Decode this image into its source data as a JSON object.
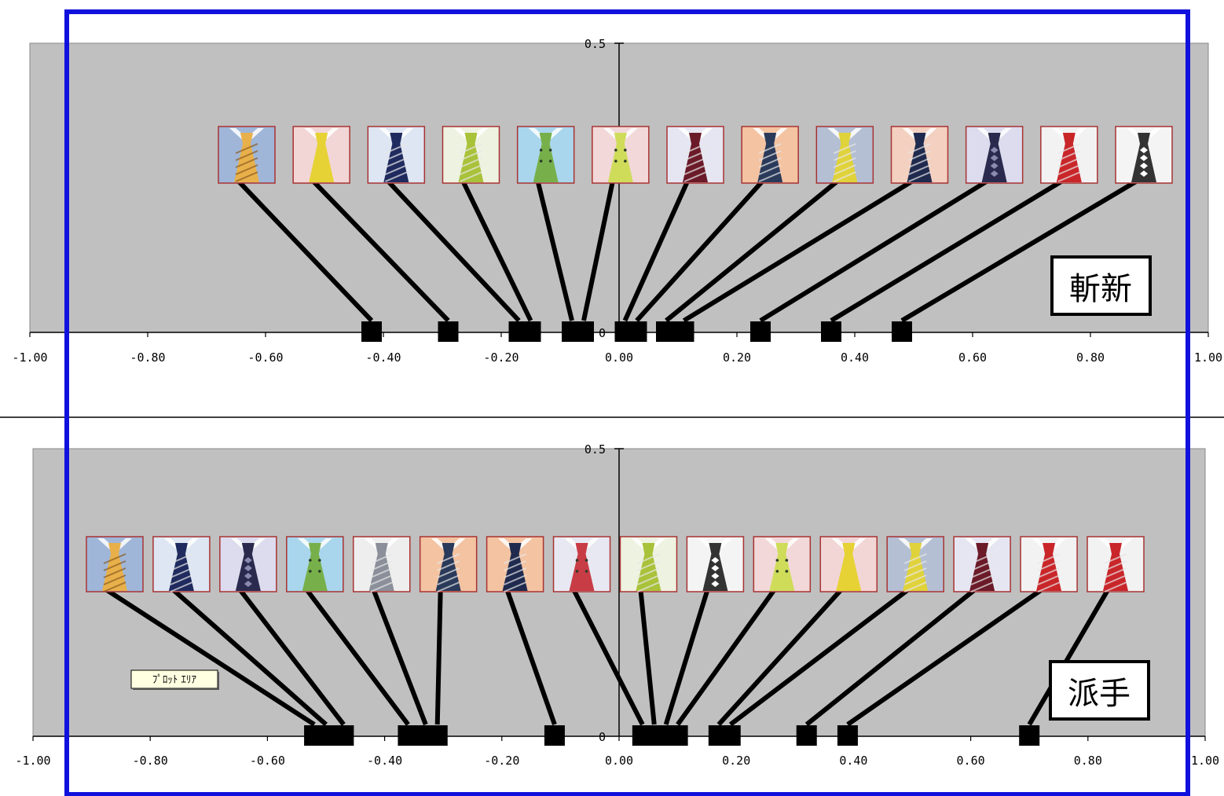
{
  "chart_data": [
    {
      "type": "scatter",
      "name": "top",
      "label": "斬新",
      "x_ticks": [
        "-1.00",
        "-0.80",
        "-0.60",
        "-0.40",
        "-0.20",
        "0.00",
        "0.20",
        "0.40",
        "0.60",
        "0.80",
        "1.00"
      ],
      "y_tick_top": "0.5",
      "y_tick_zero": "0",
      "xlim": [
        -1.0,
        1.0
      ],
      "ylim": [
        0,
        0.5
      ],
      "points": [
        {
          "x": -0.42,
          "color": "#9fb6d8",
          "tie": "#e8b04a",
          "pattern": "diagonal"
        },
        {
          "x": -0.29,
          "color": "#f2d6d6",
          "tie": "#e6d234",
          "pattern": "plain"
        },
        {
          "x": -0.17,
          "color": "#dde6f2",
          "tie": "#1f2a5e",
          "pattern": "stripe"
        },
        {
          "x": -0.15,
          "color": "#eef2e0",
          "tie": "#a8c23a",
          "pattern": "stripe"
        },
        {
          "x": -0.08,
          "color": "#a9d6ec",
          "tie": "#77b04a",
          "pattern": "dots"
        },
        {
          "x": -0.06,
          "color": "#f2d8d8",
          "tie": "#cfdc5a",
          "pattern": "dots"
        },
        {
          "x": 0.01,
          "color": "#e6e6f2",
          "tie": "#6a1a28",
          "pattern": "stripe"
        },
        {
          "x": 0.03,
          "color": "#f3c3a2",
          "tie": "#2a3a5a",
          "pattern": "stripe"
        },
        {
          "x": 0.08,
          "color": "#b4bfd3",
          "tie": "#e0d23a",
          "pattern": "stripe"
        },
        {
          "x": 0.11,
          "color": "#f3d0c0",
          "tie": "#1f2a4e",
          "pattern": "stripe"
        },
        {
          "x": 0.24,
          "color": "#dcdcee",
          "tie": "#2a2a4e",
          "pattern": "diamond"
        },
        {
          "x": 0.36,
          "color": "#f2f2f2",
          "tie": "#c9262a",
          "pattern": "stripe"
        },
        {
          "x": 0.48,
          "color": "#f4f4f4",
          "tie": "#333333",
          "pattern": "check"
        }
      ]
    },
    {
      "type": "scatter",
      "name": "bottom",
      "label": "派手",
      "x_ticks": [
        "-1.00",
        "-0.80",
        "-0.60",
        "-0.40",
        "-0.20",
        "0.00",
        "0.20",
        "0.40",
        "0.60",
        "0.80",
        "1.00"
      ],
      "y_tick_top": "0.5",
      "y_tick_zero": "0",
      "xlim": [
        -1.0,
        1.0
      ],
      "ylim": [
        0,
        0.5
      ],
      "points": [
        {
          "x": -0.52,
          "color": "#9fb6d8",
          "tie": "#e8b04a",
          "pattern": "diagonal"
        },
        {
          "x": -0.5,
          "color": "#dde6f2",
          "tie": "#1f2a5e",
          "pattern": "stripe"
        },
        {
          "x": -0.47,
          "color": "#dcdcee",
          "tie": "#2a2a4e",
          "pattern": "diamond"
        },
        {
          "x": -0.36,
          "color": "#a9d6ec",
          "tie": "#77b04a",
          "pattern": "dots"
        },
        {
          "x": -0.33,
          "color": "#eeeeee",
          "tie": "#8a8f9a",
          "pattern": "stripe"
        },
        {
          "x": -0.31,
          "color": "#f3c3a2",
          "tie": "#2a3a5a",
          "pattern": "stripe"
        },
        {
          "x": -0.11,
          "color": "#f3c3a2",
          "tie": "#1f2a4e",
          "pattern": "stripe"
        },
        {
          "x": 0.04,
          "color": "#e8e8f2",
          "tie": "#c83c46",
          "pattern": "dots"
        },
        {
          "x": 0.06,
          "color": "#eef2e0",
          "tie": "#a8c23a",
          "pattern": "stripe"
        },
        {
          "x": 0.08,
          "color": "#f4f4f4",
          "tie": "#333333",
          "pattern": "check"
        },
        {
          "x": 0.1,
          "color": "#f2d8d8",
          "tie": "#cfdc5a",
          "pattern": "dots"
        },
        {
          "x": 0.17,
          "color": "#f2d6d6",
          "tie": "#e6d234",
          "pattern": "plain"
        },
        {
          "x": 0.19,
          "color": "#b4bfd3",
          "tie": "#e0d23a",
          "pattern": "stripe"
        },
        {
          "x": 0.32,
          "color": "#e6e6f2",
          "tie": "#6a1a28",
          "pattern": "stripe"
        },
        {
          "x": 0.39,
          "color": "#f2f2f2",
          "tie": "#c9262a",
          "pattern": "stripe"
        },
        {
          "x": 0.7,
          "color": "#f2f2f2",
          "tie": "#c9262a",
          "pattern": "stripe"
        }
      ],
      "tooltip": "ﾌﾟﾛｯﾄ ｴﾘｱ"
    }
  ],
  "colors": {
    "plot_area": "#c0c0c0",
    "selection_border": "#1111dd",
    "marker": "#000000",
    "leader_line": "#000000",
    "thumb_border": "#a83232"
  }
}
